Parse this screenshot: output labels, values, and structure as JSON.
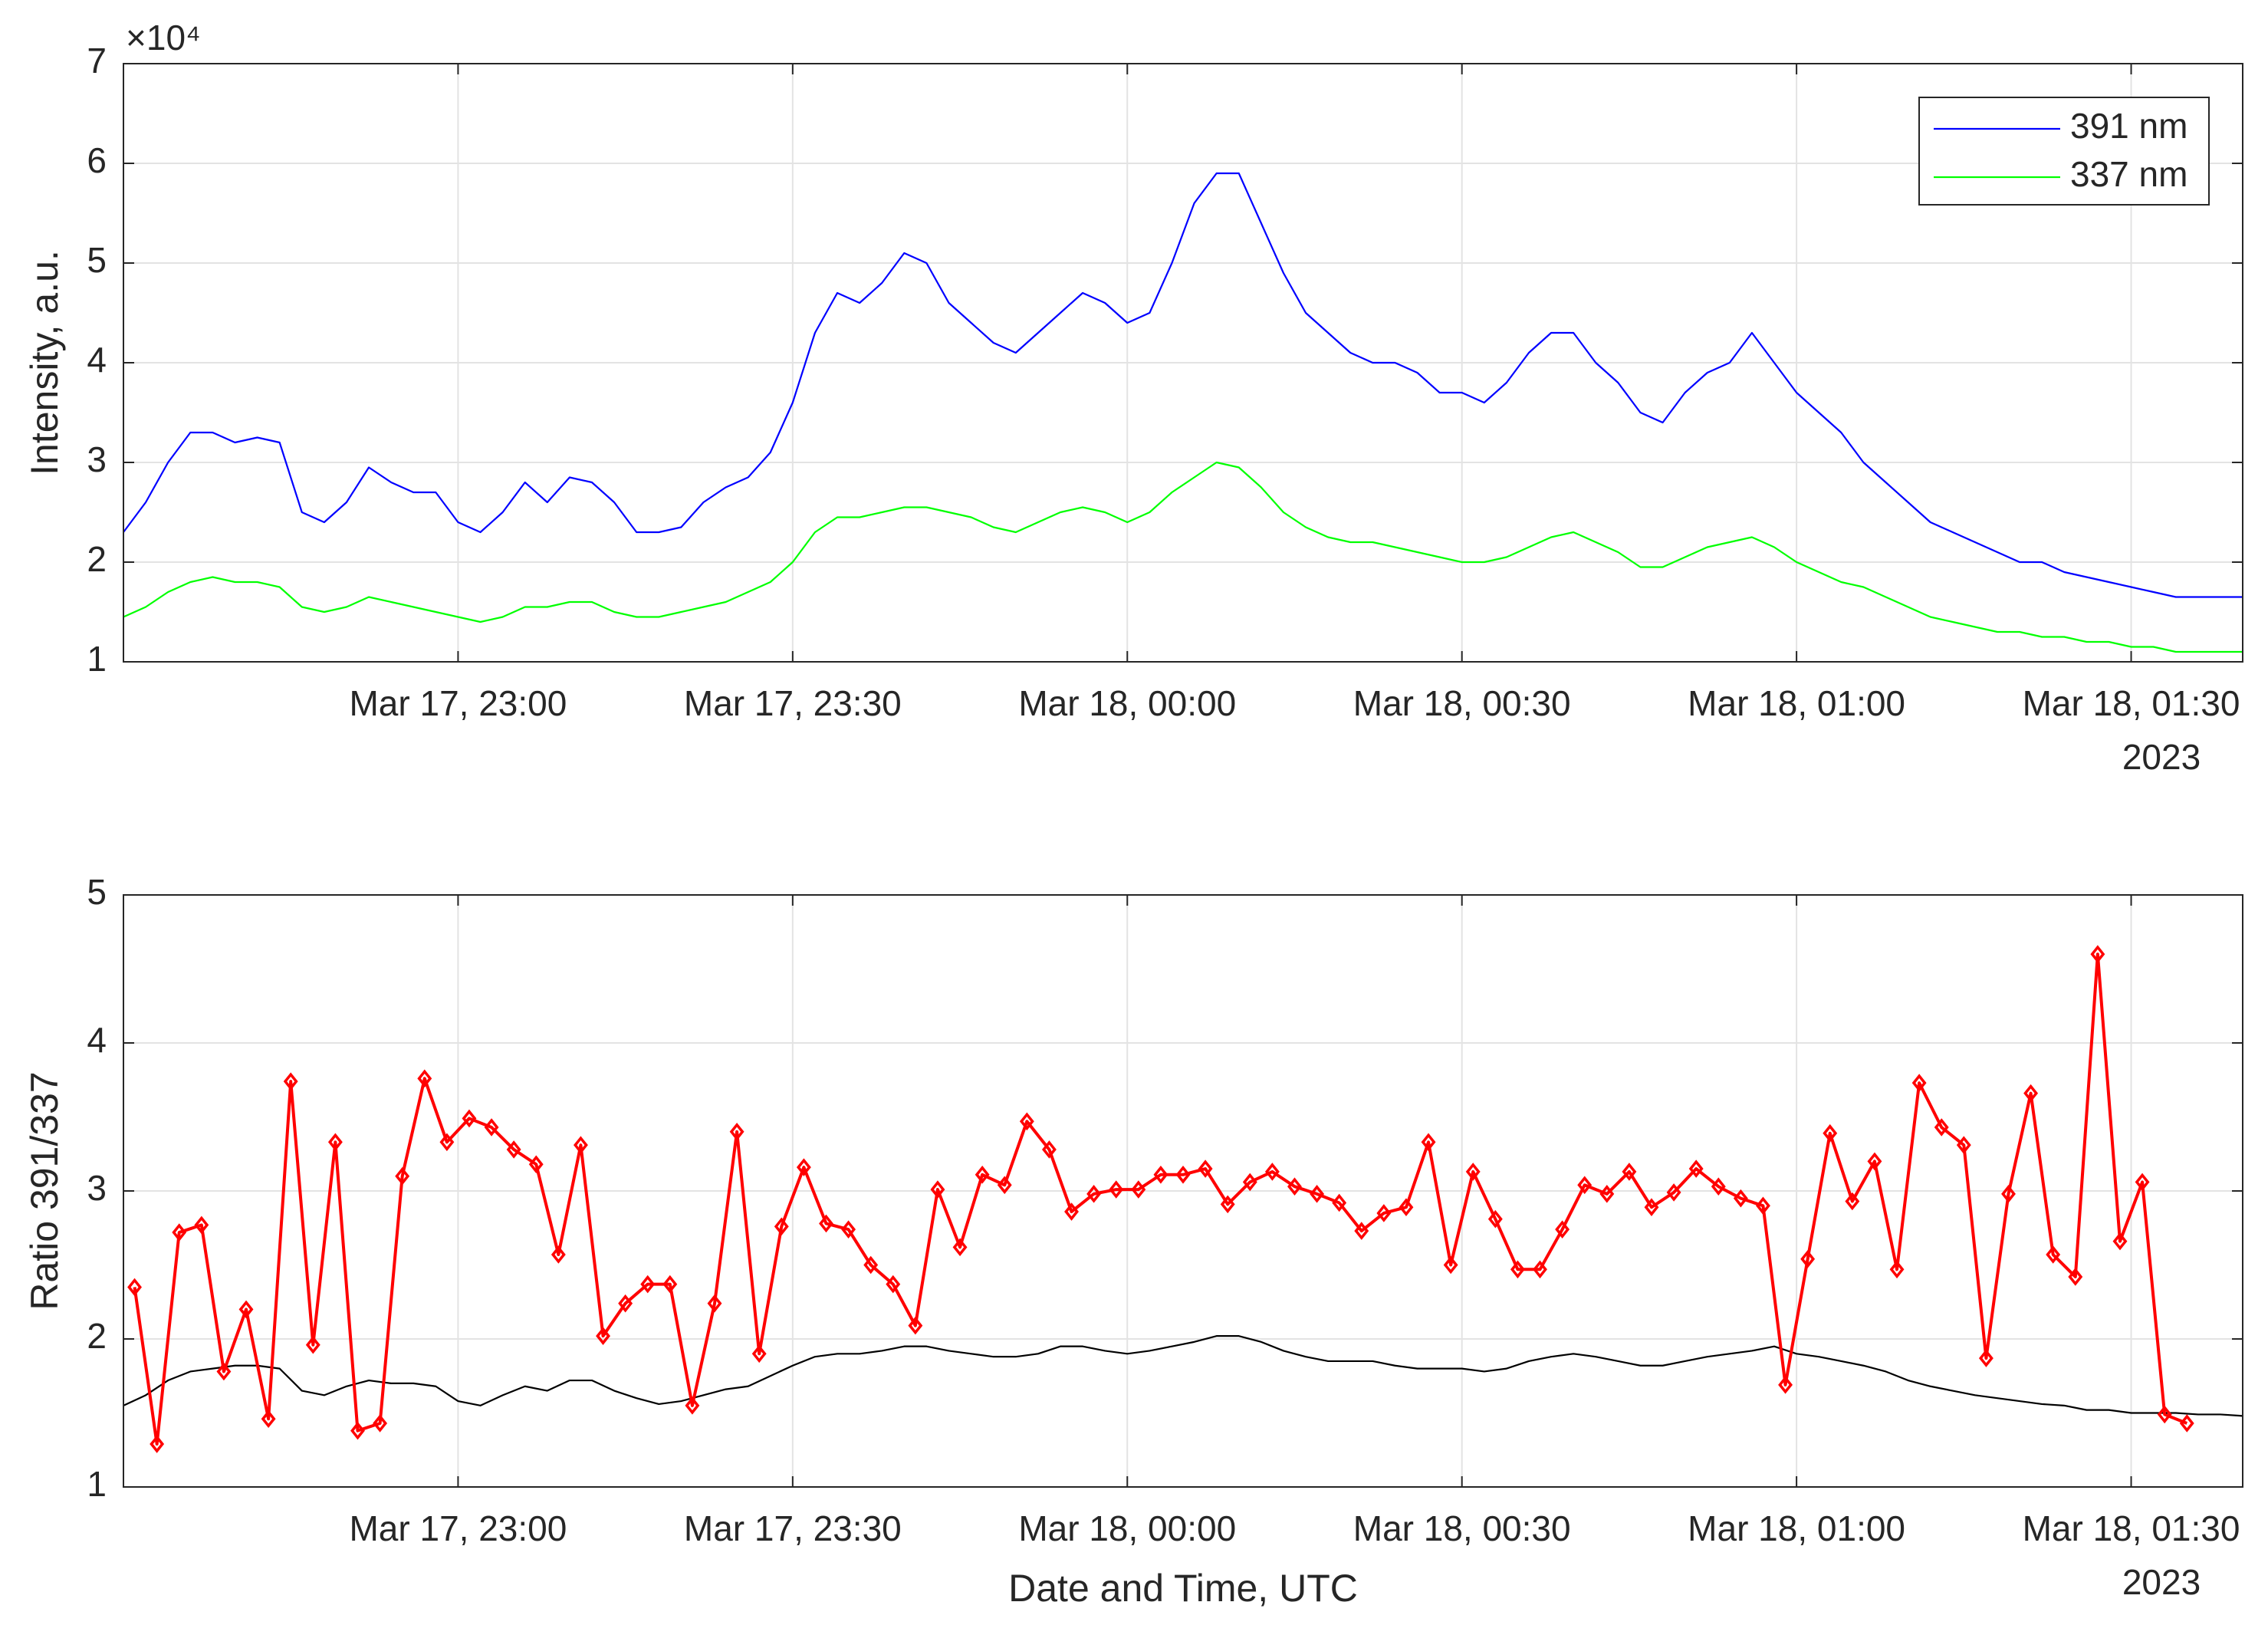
{
  "chart_data": [
    {
      "type": "line",
      "ylabel": "Intensity, a.u.",
      "y_multiplier": "×10⁴",
      "x_year_label": "2023",
      "grid": true,
      "legend": "upper right",
      "xlim": [
        "2023-03-17T22:30",
        "2023-03-18T01:40"
      ],
      "xticks": [
        {
          "value": "2023-03-17T23:00",
          "label": "Mar 17, 23:00"
        },
        {
          "value": "2023-03-17T23:30",
          "label": "Mar 17, 23:30"
        },
        {
          "value": "2023-03-18T00:00",
          "label": "Mar 18, 00:00"
        },
        {
          "value": "2023-03-18T00:30",
          "label": "Mar 18, 00:30"
        },
        {
          "value": "2023-03-18T01:00",
          "label": "Mar 18, 01:00"
        },
        {
          "value": "2023-03-18T01:30",
          "label": "Mar 18, 01:30"
        }
      ],
      "ylim": [
        10000,
        70000
      ],
      "yticks": [
        {
          "value": 10000,
          "label": "1"
        },
        {
          "value": 20000,
          "label": "2"
        },
        {
          "value": 30000,
          "label": "3"
        },
        {
          "value": 40000,
          "label": "4"
        },
        {
          "value": 50000,
          "label": "5"
        },
        {
          "value": 60000,
          "label": "6"
        },
        {
          "value": 70000,
          "label": "7"
        }
      ],
      "x": [
        "2023-03-17T22:30",
        "2023-03-17T22:32",
        "2023-03-17T22:34",
        "2023-03-17T22:36",
        "2023-03-17T22:38",
        "2023-03-17T22:40",
        "2023-03-17T22:42",
        "2023-03-17T22:44",
        "2023-03-17T22:46",
        "2023-03-17T22:48",
        "2023-03-17T22:50",
        "2023-03-17T22:52",
        "2023-03-17T22:54",
        "2023-03-17T22:56",
        "2023-03-17T22:58",
        "2023-03-17T23:00",
        "2023-03-17T23:02",
        "2023-03-17T23:04",
        "2023-03-17T23:06",
        "2023-03-17T23:08",
        "2023-03-17T23:10",
        "2023-03-17T23:12",
        "2023-03-17T23:14",
        "2023-03-17T23:16",
        "2023-03-17T23:18",
        "2023-03-17T23:20",
        "2023-03-17T23:22",
        "2023-03-17T23:24",
        "2023-03-17T23:26",
        "2023-03-17T23:28",
        "2023-03-17T23:30",
        "2023-03-17T23:32",
        "2023-03-17T23:34",
        "2023-03-17T23:36",
        "2023-03-17T23:38",
        "2023-03-17T23:40",
        "2023-03-17T23:42",
        "2023-03-17T23:44",
        "2023-03-17T23:46",
        "2023-03-17T23:48",
        "2023-03-17T23:50",
        "2023-03-17T23:52",
        "2023-03-17T23:54",
        "2023-03-17T23:56",
        "2023-03-17T23:58",
        "2023-03-18T00:00",
        "2023-03-18T00:02",
        "2023-03-18T00:04",
        "2023-03-18T00:06",
        "2023-03-18T00:08",
        "2023-03-18T00:10",
        "2023-03-18T00:12",
        "2023-03-18T00:14",
        "2023-03-18T00:16",
        "2023-03-18T00:18",
        "2023-03-18T00:20",
        "2023-03-18T00:22",
        "2023-03-18T00:24",
        "2023-03-18T00:26",
        "2023-03-18T00:28",
        "2023-03-18T00:30",
        "2023-03-18T00:32",
        "2023-03-18T00:34",
        "2023-03-18T00:36",
        "2023-03-18T00:38",
        "2023-03-18T00:40",
        "2023-03-18T00:42",
        "2023-03-18T00:44",
        "2023-03-18T00:46",
        "2023-03-18T00:48",
        "2023-03-18T00:50",
        "2023-03-18T00:52",
        "2023-03-18T00:54",
        "2023-03-18T00:56",
        "2023-03-18T00:58",
        "2023-03-18T01:00",
        "2023-03-18T01:02",
        "2023-03-18T01:04",
        "2023-03-18T01:06",
        "2023-03-18T01:08",
        "2023-03-18T01:10",
        "2023-03-18T01:12",
        "2023-03-18T01:14",
        "2023-03-18T01:16",
        "2023-03-18T01:18",
        "2023-03-18T01:20",
        "2023-03-18T01:22",
        "2023-03-18T01:24",
        "2023-03-18T01:26",
        "2023-03-18T01:28",
        "2023-03-18T01:30",
        "2023-03-18T01:32",
        "2023-03-18T01:34",
        "2023-03-18T01:36",
        "2023-03-18T01:38",
        "2023-03-18T01:40"
      ],
      "series": [
        {
          "name": "391 nm",
          "color": "#0000ff",
          "values": [
            23000,
            26000,
            30000,
            33000,
            33000,
            32000,
            32500,
            32000,
            25000,
            24000,
            26000,
            29500,
            28000,
            27000,
            27000,
            24000,
            23000,
            25000,
            28000,
            26000,
            28500,
            28000,
            26000,
            23000,
            23000,
            23500,
            26000,
            27500,
            28500,
            31000,
            36000,
            43000,
            47000,
            46000,
            48000,
            51000,
            50000,
            46000,
            44000,
            42000,
            41000,
            43000,
            45000,
            47000,
            46000,
            44000,
            45000,
            50000,
            56000,
            59000,
            59000,
            54000,
            49000,
            45000,
            43000,
            41000,
            40000,
            40000,
            39000,
            37000,
            37000,
            36000,
            38000,
            41000,
            43000,
            43000,
            40000,
            38000,
            35000,
            34000,
            37000,
            39000,
            40000,
            43000,
            40000,
            37000,
            35000,
            33000,
            30000,
            28000,
            26000,
            24000,
            23000,
            22000,
            21000,
            20000,
            20000,
            19000,
            18500,
            18000,
            17500,
            17000,
            16500,
            16500,
            16500,
            16500
          ]
        },
        {
          "name": "337 nm",
          "color": "#00ff00",
          "values": [
            14500,
            15500,
            17000,
            18000,
            18500,
            18000,
            18000,
            17500,
            15500,
            15000,
            15500,
            16500,
            16000,
            15500,
            15000,
            14500,
            14000,
            14500,
            15500,
            15500,
            16000,
            16000,
            15000,
            14500,
            14500,
            15000,
            15500,
            16000,
            17000,
            18000,
            20000,
            23000,
            24500,
            24500,
            25000,
            25500,
            25500,
            25000,
            24500,
            23500,
            23000,
            24000,
            25000,
            25500,
            25000,
            24000,
            25000,
            27000,
            28500,
            30000,
            29500,
            27500,
            25000,
            23500,
            22500,
            22000,
            22000,
            21500,
            21000,
            20500,
            20000,
            20000,
            20500,
            21500,
            22500,
            23000,
            22000,
            21000,
            19500,
            19500,
            20500,
            21500,
            22000,
            22500,
            21500,
            20000,
            19000,
            18000,
            17500,
            16500,
            15500,
            14500,
            14000,
            13500,
            13000,
            13000,
            12500,
            12500,
            12000,
            12000,
            11500,
            11500,
            11000,
            11000,
            11000,
            11000
          ]
        }
      ]
    },
    {
      "type": "line",
      "ylabel": "Ratio 391/337",
      "xlabel": "Date and Time, UTC",
      "x_year_label": "2023",
      "grid": true,
      "xlim": [
        "2023-03-17T22:30",
        "2023-03-18T01:40"
      ],
      "xticks": [
        {
          "value": "2023-03-17T23:00",
          "label": "Mar 17, 23:00"
        },
        {
          "value": "2023-03-17T23:30",
          "label": "Mar 17, 23:30"
        },
        {
          "value": "2023-03-18T00:00",
          "label": "Mar 18, 00:00"
        },
        {
          "value": "2023-03-18T00:30",
          "label": "Mar 18, 00:30"
        },
        {
          "value": "2023-03-18T01:00",
          "label": "Mar 18, 01:00"
        },
        {
          "value": "2023-03-18T01:30",
          "label": "Mar 18, 01:30"
        }
      ],
      "ylim": [
        1,
        5
      ],
      "yticks": [
        1,
        2,
        3,
        4,
        5
      ],
      "x": [
        "2023-03-17T22:30",
        "2023-03-17T22:32",
        "2023-03-17T22:34",
        "2023-03-17T22:36",
        "2023-03-17T22:38",
        "2023-03-17T22:40",
        "2023-03-17T22:42",
        "2023-03-17T22:44",
        "2023-03-17T22:46",
        "2023-03-17T22:48",
        "2023-03-17T22:50",
        "2023-03-17T22:52",
        "2023-03-17T22:54",
        "2023-03-17T22:56",
        "2023-03-17T22:58",
        "2023-03-17T23:00",
        "2023-03-17T23:02",
        "2023-03-17T23:04",
        "2023-03-17T23:06",
        "2023-03-17T23:08",
        "2023-03-17T23:10",
        "2023-03-17T23:12",
        "2023-03-17T23:14",
        "2023-03-17T23:16",
        "2023-03-17T23:18",
        "2023-03-17T23:20",
        "2023-03-17T23:22",
        "2023-03-17T23:24",
        "2023-03-17T23:26",
        "2023-03-17T23:28",
        "2023-03-17T23:30",
        "2023-03-17T23:32",
        "2023-03-17T23:34",
        "2023-03-17T23:36",
        "2023-03-17T23:38",
        "2023-03-17T23:40",
        "2023-03-17T23:42",
        "2023-03-17T23:44",
        "2023-03-17T23:46",
        "2023-03-17T23:48",
        "2023-03-17T23:50",
        "2023-03-17T23:52",
        "2023-03-17T23:54",
        "2023-03-17T23:56",
        "2023-03-17T23:58",
        "2023-03-18T00:00",
        "2023-03-18T00:02",
        "2023-03-18T00:04",
        "2023-03-18T00:06",
        "2023-03-18T00:08",
        "2023-03-18T00:10",
        "2023-03-18T00:12",
        "2023-03-18T00:14",
        "2023-03-18T00:16",
        "2023-03-18T00:18",
        "2023-03-18T00:20",
        "2023-03-18T00:22",
        "2023-03-18T00:24",
        "2023-03-18T00:26",
        "2023-03-18T00:28",
        "2023-03-18T00:30",
        "2023-03-18T00:32",
        "2023-03-18T00:34",
        "2023-03-18T00:36",
        "2023-03-18T00:38",
        "2023-03-18T00:40",
        "2023-03-18T00:42",
        "2023-03-18T00:44",
        "2023-03-18T00:46",
        "2023-03-18T00:48",
        "2023-03-18T00:50",
        "2023-03-18T00:52",
        "2023-03-18T00:54",
        "2023-03-18T00:56",
        "2023-03-18T00:58",
        "2023-03-18T01:00",
        "2023-03-18T01:02",
        "2023-03-18T01:04",
        "2023-03-18T01:06",
        "2023-03-18T01:08",
        "2023-03-18T01:10",
        "2023-03-18T01:12",
        "2023-03-18T01:14",
        "2023-03-18T01:16",
        "2023-03-18T01:18",
        "2023-03-18T01:20",
        "2023-03-18T01:22",
        "2023-03-18T01:24",
        "2023-03-18T01:26",
        "2023-03-18T01:28",
        "2023-03-18T01:30",
        "2023-03-18T01:32",
        "2023-03-18T01:34",
        "2023-03-18T01:36",
        "2023-03-18T01:38",
        "2023-03-18T01:40"
      ],
      "series": [
        {
          "color": "#000000",
          "values": [
            1.55,
            1.62,
            1.72,
            1.78,
            1.8,
            1.82,
            1.82,
            1.8,
            1.65,
            1.62,
            1.68,
            1.72,
            1.7,
            1.7,
            1.68,
            1.58,
            1.55,
            1.62,
            1.68,
            1.65,
            1.72,
            1.72,
            1.65,
            1.6,
            1.56,
            1.58,
            1.62,
            1.66,
            1.68,
            1.75,
            1.82,
            1.88,
            1.9,
            1.9,
            1.92,
            1.95,
            1.95,
            1.92,
            1.9,
            1.88,
            1.88,
            1.9,
            1.95,
            1.95,
            1.92,
            1.9,
            1.92,
            1.95,
            1.98,
            2.02,
            2.02,
            1.98,
            1.92,
            1.88,
            1.85,
            1.85,
            1.85,
            1.82,
            1.8,
            1.8,
            1.8,
            1.78,
            1.8,
            1.85,
            1.88,
            1.9,
            1.88,
            1.85,
            1.82,
            1.82,
            1.85,
            1.88,
            1.9,
            1.92,
            1.95,
            1.9,
            1.88,
            1.85,
            1.82,
            1.78,
            1.72,
            1.68,
            1.65,
            1.62,
            1.6,
            1.58,
            1.56,
            1.55,
            1.52,
            1.52,
            1.5,
            1.5,
            1.5,
            1.49,
            1.49,
            1.48
          ]
        },
        {
          "color": "#ff0000",
          "marker": "diamond",
          "x": [
            "2023-03-17T22:31",
            "2023-03-17T22:33",
            "2023-03-17T22:35",
            "2023-03-17T22:37",
            "2023-03-17T22:39",
            "2023-03-17T22:41",
            "2023-03-17T22:43",
            "2023-03-17T22:45",
            "2023-03-17T22:47",
            "2023-03-17T22:49",
            "2023-03-17T22:51",
            "2023-03-17T22:53",
            "2023-03-17T22:55",
            "2023-03-17T22:57",
            "2023-03-17T22:59",
            "2023-03-17T23:01",
            "2023-03-17T23:03",
            "2023-03-17T23:05",
            "2023-03-17T23:07",
            "2023-03-17T23:09",
            "2023-03-17T23:11",
            "2023-03-17T23:13",
            "2023-03-17T23:15",
            "2023-03-17T23:17",
            "2023-03-17T23:19",
            "2023-03-17T23:21",
            "2023-03-17T23:23",
            "2023-03-17T23:25",
            "2023-03-17T23:27",
            "2023-03-17T23:29",
            "2023-03-17T23:31",
            "2023-03-17T23:33",
            "2023-03-17T23:35",
            "2023-03-17T23:37",
            "2023-03-17T23:39",
            "2023-03-17T23:41",
            "2023-03-17T23:43",
            "2023-03-17T23:45",
            "2023-03-17T23:47",
            "2023-03-17T23:49",
            "2023-03-17T23:51",
            "2023-03-17T23:53",
            "2023-03-17T23:55",
            "2023-03-17T23:57",
            "2023-03-17T23:59",
            "2023-03-18T00:01",
            "2023-03-18T00:03",
            "2023-03-18T00:05",
            "2023-03-18T00:07",
            "2023-03-18T00:09",
            "2023-03-18T00:11",
            "2023-03-18T00:13",
            "2023-03-18T00:15",
            "2023-03-18T00:17",
            "2023-03-18T00:19",
            "2023-03-18T00:21",
            "2023-03-18T00:23",
            "2023-03-18T00:25",
            "2023-03-18T00:27",
            "2023-03-18T00:29",
            "2023-03-18T00:31",
            "2023-03-18T00:33",
            "2023-03-18T00:35",
            "2023-03-18T00:37",
            "2023-03-18T00:39",
            "2023-03-18T00:41",
            "2023-03-18T00:43",
            "2023-03-18T00:45",
            "2023-03-18T00:47",
            "2023-03-18T00:49",
            "2023-03-18T00:51",
            "2023-03-18T00:53",
            "2023-03-18T00:55",
            "2023-03-18T00:57",
            "2023-03-18T00:59",
            "2023-03-18T01:01",
            "2023-03-18T01:03",
            "2023-03-18T01:05",
            "2023-03-18T01:07",
            "2023-03-18T01:09",
            "2023-03-18T01:11",
            "2023-03-18T01:13",
            "2023-03-18T01:15",
            "2023-03-18T01:17",
            "2023-03-18T01:19",
            "2023-03-18T01:21",
            "2023-03-18T01:23",
            "2023-03-18T01:25",
            "2023-03-18T01:27",
            "2023-03-18T01:29",
            "2023-03-18T01:31",
            "2023-03-18T01:33",
            "2023-03-18T01:35"
          ],
          "values": [
            2.35,
            1.29,
            2.72,
            2.77,
            1.78,
            2.2,
            1.46,
            3.74,
            1.96,
            3.33,
            1.38,
            1.43,
            3.1,
            3.76,
            3.33,
            3.49,
            3.43,
            3.28,
            3.18,
            2.57,
            3.31,
            2.02,
            2.24,
            2.37,
            2.37,
            1.55,
            2.24,
            3.4,
            1.9,
            2.76,
            3.16,
            2.78,
            2.74,
            2.5,
            2.37,
            2.09,
            3.01,
            2.62,
            3.11,
            3.04,
            3.47,
            3.28,
            2.86,
            2.98,
            3.01,
            3.01,
            3.11,
            3.11,
            3.15,
            2.91,
            3.06,
            3.13,
            3.03,
            2.98,
            2.92,
            2.73,
            2.85,
            2.89,
            3.33,
            2.5,
            3.13,
            2.81,
            2.47,
            2.47,
            2.74,
            3.04,
            2.98,
            3.13,
            2.89,
            2.99,
            3.15,
            3.03,
            2.95,
            2.9,
            1.69,
            2.54,
            3.39,
            2.93,
            3.2,
            2.47,
            3.73,
            3.43,
            3.31,
            1.87,
            2.98,
            3.66,
            2.57,
            2.42,
            4.6,
            2.66,
            3.06,
            1.49,
            1.43
          ]
        }
      ]
    }
  ]
}
